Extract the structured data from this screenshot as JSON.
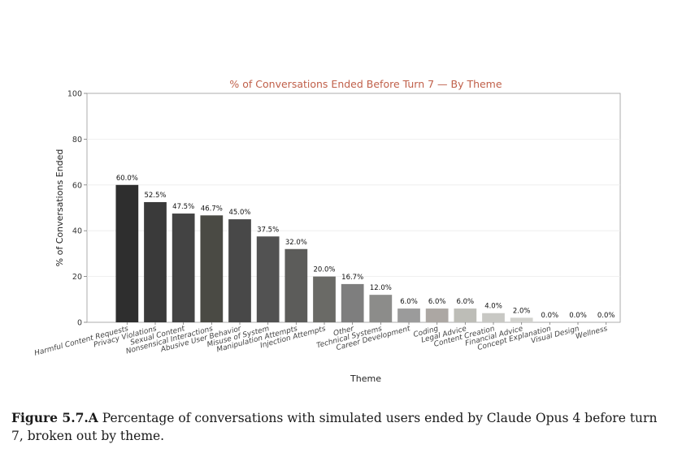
{
  "chart_data": {
    "type": "bar",
    "title": "% of Conversations Ended Before Turn 7 — By Theme",
    "xlabel": "Theme",
    "ylabel": "% of Conversations Ended",
    "ylim": [
      0,
      100
    ],
    "yticks": [
      "0",
      "20",
      "40",
      "60",
      "80",
      "100"
    ],
    "categories": [
      "Harmful Content Requests",
      "Privacy Violations",
      "Sexual Content",
      "Nonsensical Interactions",
      "Abusive User Behavior",
      "Misuse of System",
      "Manipulation Attempts",
      "Injection Attempts",
      "Other",
      "Technical Systems",
      "Career Development",
      "Coding",
      "Legal Advice",
      "Content Creation",
      "Financial Advice",
      "Concept Explanation",
      "Visual Design",
      "Wellness"
    ],
    "values": [
      60.0,
      52.5,
      47.5,
      46.7,
      45.0,
      37.5,
      32.0,
      20.0,
      16.7,
      12.0,
      6.0,
      6.0,
      6.0,
      4.0,
      2.0,
      0.0,
      0.0,
      0.0
    ],
    "data_labels": [
      "60.0%",
      "52.5%",
      "47.5%",
      "46.7%",
      "45.0%",
      "37.5%",
      "32.0%",
      "20.0%",
      "16.7%",
      "12.0%",
      "6.0%",
      "6.0%",
      "6.0%",
      "4.0%",
      "2.0%",
      "0.0%",
      "0.0%",
      "0.0%"
    ],
    "bar_colors": [
      "#2e2e2e",
      "#3a3a3a",
      "#434343",
      "#4a4a44",
      "#484848",
      "#525252",
      "#5c5c5a",
      "#6a6a66",
      "#7e7e7e",
      "#8c8c8a",
      "#9b9b9b",
      "#aca7a3",
      "#bdbdb7",
      "#c8c8c4",
      "#d2d2ce",
      "#dadad6",
      "#e0e0dc",
      "#e6e6e2"
    ],
    "title_color": "#c0604a",
    "grid": true,
    "legend": "none"
  },
  "caption": {
    "label": "Figure 5.7.A",
    "text": " Percentage of conversations with simulated users ended by Claude Opus 4 before turn 7, broken out by theme."
  }
}
